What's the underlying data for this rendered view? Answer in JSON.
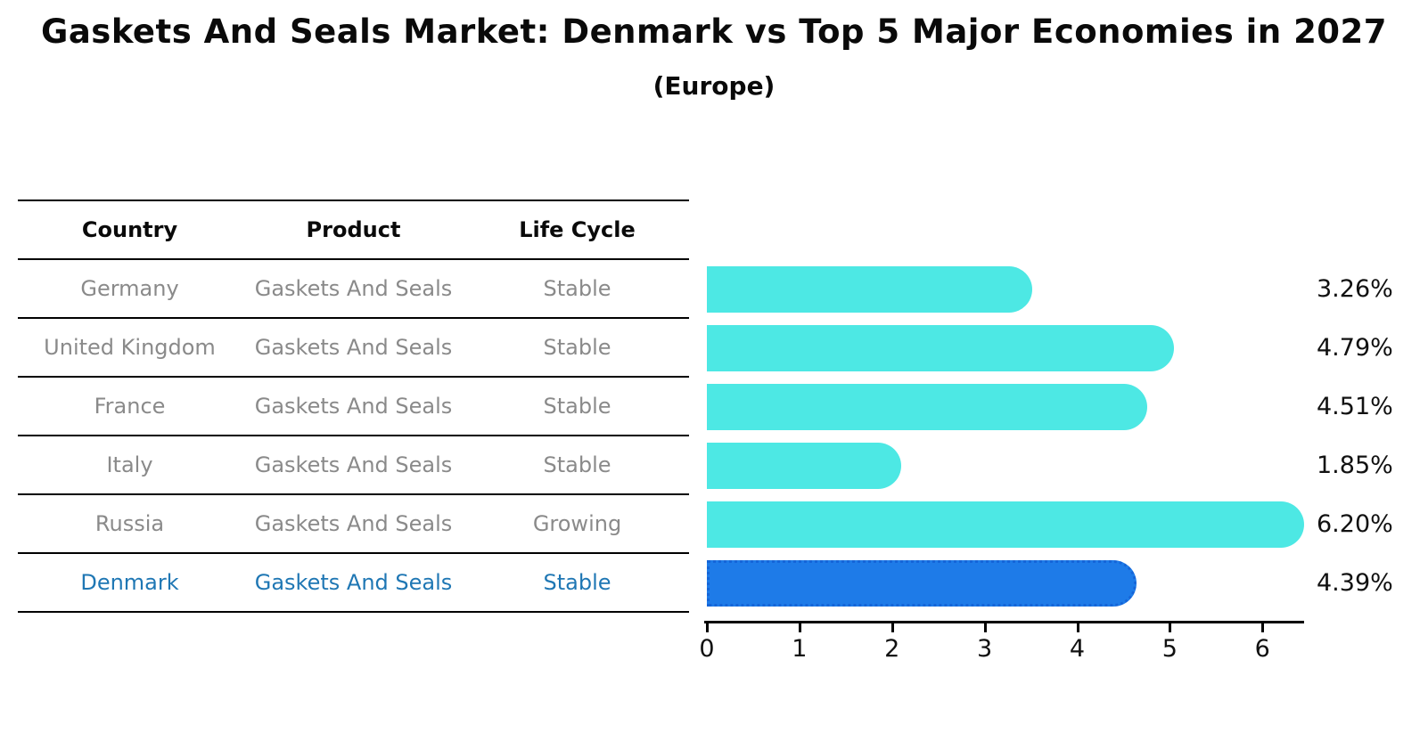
{
  "title": "Gaskets And Seals Market: Denmark vs Top 5 Major Economies in 2027",
  "subtitle": "(Europe)",
  "table": {
    "headers": [
      "Country",
      "Product",
      "Life Cycle"
    ],
    "rows": [
      {
        "country": "Germany",
        "product": "Gaskets And Seals",
        "life_cycle": "Stable",
        "highlight": false
      },
      {
        "country": "United Kingdom",
        "product": "Gaskets And Seals",
        "life_cycle": "Stable",
        "highlight": false
      },
      {
        "country": "France",
        "product": "Gaskets And Seals",
        "life_cycle": "Stable",
        "highlight": false
      },
      {
        "country": "Italy",
        "product": "Gaskets And Seals",
        "life_cycle": "Stable",
        "highlight": false
      },
      {
        "country": "Russia",
        "product": "Gaskets And Seals",
        "life_cycle": "Growing",
        "highlight": false
      },
      {
        "country": "Denmark",
        "product": "Gaskets And Seals",
        "life_cycle": "Stable",
        "highlight": true
      }
    ]
  },
  "chart_data": {
    "type": "bar",
    "orientation": "horizontal",
    "categories": [
      "Germany",
      "United Kingdom",
      "France",
      "Italy",
      "Russia",
      "Denmark"
    ],
    "values": [
      3.26,
      4.79,
      4.51,
      1.85,
      6.2,
      4.39
    ],
    "value_labels": [
      "3.26%",
      "4.79%",
      "4.51%",
      "1.85%",
      "6.20%",
      "4.39%"
    ],
    "x_ticks": [
      0,
      1,
      2,
      3,
      4,
      5,
      6
    ],
    "xlim": [
      0,
      6.45
    ],
    "title": "Gaskets And Seals Market: Denmark vs Top 5 Major Economies in 2027",
    "subtitle": "(Europe)",
    "xlabel": "",
    "ylabel": "",
    "grid": false,
    "legend": "none",
    "bar_color": "#4de8e4",
    "highlight_bar_color": "#1e7be8",
    "highlight_bar_border": "#1565d8",
    "highlight_index": 5
  },
  "colors": {
    "title_text": "#0a0a0a",
    "table_text": "#8a8a8a",
    "highlight_text": "#1f77b4",
    "axis_text": "#111111",
    "line": "#000000"
  }
}
